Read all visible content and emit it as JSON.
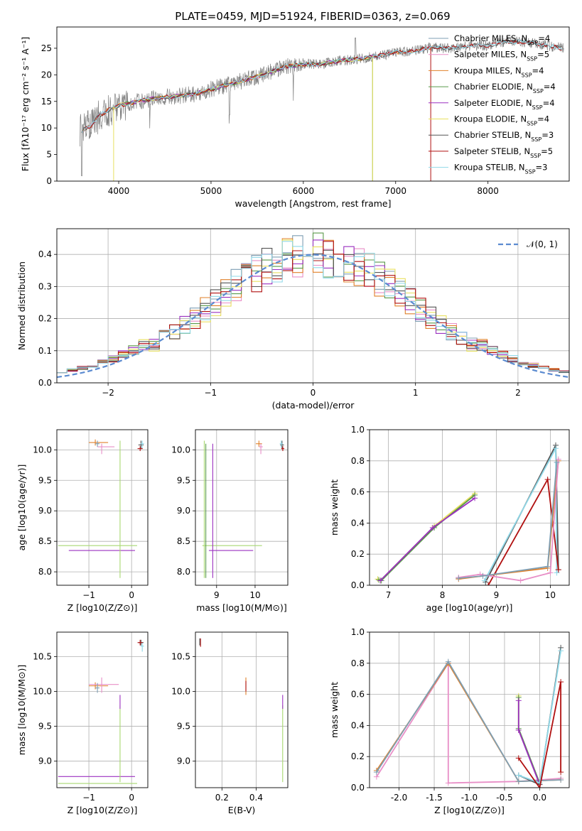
{
  "figure_title": "PLATE=0459, MJD=51924, FIBERID=0363, z=0.069",
  "colors": {
    "Chabrier MILES": "#7f9fb4",
    "Salpeter MILES": "#e88fc7",
    "Kroupa MILES": "#e0802a",
    "Chabrier ELODIE": "#5a9a4a",
    "Salpeter ELODIE": "#9b30c0",
    "Kroupa ELODIE": "#e8e060",
    "Chabrier STELIB": "#555555",
    "Salpeter STELIB": "#b01010",
    "Kroupa STELIB": "#8fd8e8",
    "spectrum": "#808080",
    "gaussian": "#5b8bd0",
    "green_line": "#a8d870"
  },
  "chart_data": [
    {
      "type": "line",
      "id": "spectrum",
      "title": "",
      "xlabel": "wavelength [Angstrom, rest frame]",
      "ylabel": "Flux [fλ10⁻¹⁷ erg cm⁻² s⁻¹ A⁻¹]",
      "xlim": [
        3330,
        8880
      ],
      "ylim": [
        0,
        29
      ],
      "xticks": [
        4000,
        5000,
        6000,
        7000,
        8000
      ],
      "yticks": [
        0,
        5,
        10,
        15,
        20,
        25
      ],
      "grid": false,
      "legend_position": "right",
      "legend": [
        {
          "name": "Chabrier MILES",
          "nssp": "4"
        },
        {
          "name": "Salpeter MILES",
          "nssp": "5"
        },
        {
          "name": "Kroupa MILES",
          "nssp": "4"
        },
        {
          "name": "Chabrier ELODIE",
          "nssp": "4"
        },
        {
          "name": "Salpeter ELODIE",
          "nssp": "4"
        },
        {
          "name": "Kroupa ELODIE",
          "nssp": "4"
        },
        {
          "name": "Chabrier STELIB",
          "nssp": "3"
        },
        {
          "name": "Salpeter STELIB",
          "nssp": "5"
        },
        {
          "name": "Kroupa STELIB",
          "nssp": "3"
        }
      ],
      "continuum": {
        "x": [
          3600,
          3700,
          3800,
          3900,
          4000,
          4200,
          4400,
          4600,
          4800,
          5000,
          5200,
          5400,
          5600,
          5800,
          6000,
          6200,
          6400,
          6600,
          6800,
          7000,
          7200,
          7400,
          7600,
          7800,
          8000,
          8200,
          8500,
          8800
        ],
        "y": [
          9.5,
          10.5,
          12.5,
          13.5,
          14.2,
          15.0,
          15.6,
          16.0,
          16.3,
          17.3,
          18.2,
          19.2,
          20.2,
          21.5,
          22.0,
          22.0,
          22.7,
          23.0,
          23.5,
          24.2,
          24.5,
          25.2,
          25.0,
          25.5,
          25.5,
          26.3,
          26.0,
          25.0
        ]
      }
    },
    {
      "type": "histogram",
      "id": "residuals",
      "xlabel": "(data-model)/error",
      "ylabel": "Normed distribution",
      "xlim": [
        -2.5,
        2.5
      ],
      "ylim": [
        0,
        0.48
      ],
      "xticks": [
        -2,
        -1,
        0,
        1,
        2
      ],
      "yticks": [
        0.0,
        0.1,
        0.2,
        0.3,
        0.4
      ],
      "grid": true,
      "legend_position": "top-right",
      "legend": [
        "𝒩(0, 1)"
      ],
      "bin_width": 0.1,
      "gaussian": {
        "mean": 0,
        "sigma": 1
      }
    },
    {
      "type": "errorbar",
      "id": "age-vs-Z",
      "xlabel": "Z [log10(Z/Z⊙)]",
      "ylabel": "age  [log10(age/yr)]",
      "xlim": [
        -1.75,
        0.38
      ],
      "ylim": [
        7.78,
        10.33
      ],
      "xticks": [
        -1,
        0
      ],
      "yticks": [
        8.0,
        8.5,
        9.0,
        9.5,
        10.0
      ],
      "grid": true
    },
    {
      "type": "errorbar",
      "id": "age-vs-mass",
      "xlabel": "mass [log10(M/M⊙)]",
      "ylabel": "",
      "xlim": [
        8.45,
        10.85
      ],
      "ylim": [
        7.78,
        10.33
      ],
      "xticks": [
        9,
        10
      ],
      "yticks": [
        8.0,
        8.5,
        9.0,
        9.5,
        10.0
      ],
      "grid": true
    },
    {
      "type": "line",
      "id": "weight-vs-age",
      "xlabel": "age  [log10(age/yr)]",
      "ylabel": "mass weight",
      "xlim": [
        6.65,
        10.35
      ],
      "ylim": [
        0,
        1.0
      ],
      "xticks": [
        7,
        8,
        9,
        10
      ],
      "yticks": [
        0.0,
        0.2,
        0.4,
        0.6,
        0.8,
        1.0
      ],
      "grid": true
    },
    {
      "type": "errorbar",
      "id": "mass-vs-Z",
      "xlabel": "Z [log10(Z/Z⊙)]",
      "ylabel": "mass [log10(M/M⊙)]",
      "xlim": [
        -1.75,
        0.38
      ],
      "ylim": [
        8.62,
        10.85
      ],
      "xticks": [
        -1,
        0
      ],
      "yticks": [
        9.0,
        9.5,
        10.0,
        10.5
      ],
      "grid": true
    },
    {
      "type": "errorbar",
      "id": "mass-vs-ebv",
      "xlabel": "E(B-V)",
      "ylabel": "",
      "xlim": [
        0.045,
        0.585
      ],
      "ylim": [
        8.62,
        10.85
      ],
      "xticks": [
        0.2,
        0.4
      ],
      "yticks": [
        9.0,
        9.5,
        10.0,
        10.5
      ],
      "grid": true
    },
    {
      "type": "line",
      "id": "weight-vs-Z",
      "xlabel": "Z [log10(Z/Z⊙)]",
      "ylabel": "mass weight",
      "xlim": [
        -2.42,
        0.42
      ],
      "ylim": [
        0,
        1.0
      ],
      "xticks": [
        -2.0,
        -1.5,
        -1.0,
        -0.5,
        0.0
      ],
      "yticks": [
        0.0,
        0.2,
        0.4,
        0.6,
        0.8,
        1.0
      ],
      "grid": true
    }
  ]
}
